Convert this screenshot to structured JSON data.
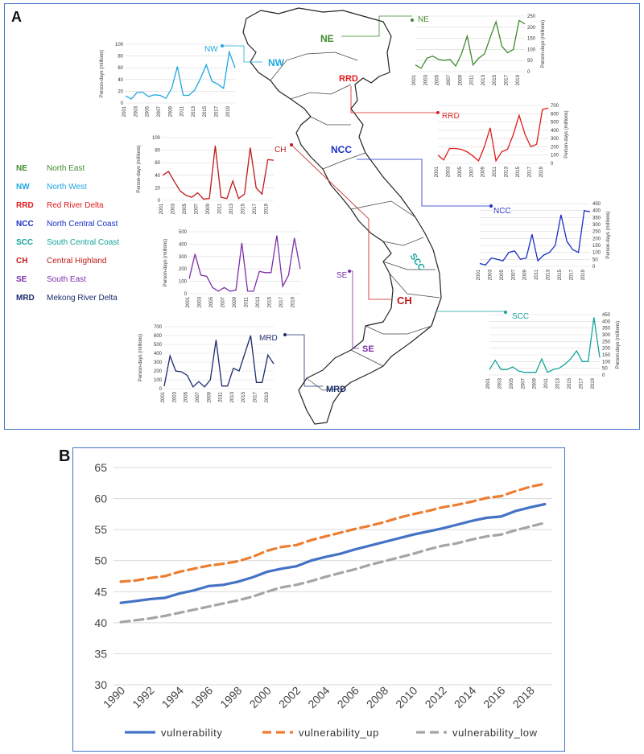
{
  "panel_a_label": "A",
  "panel_b_label": "B",
  "legend_regions": [
    {
      "code": "NE",
      "name": "North East",
      "color": "#3f8a2e"
    },
    {
      "code": "NW",
      "name": "North West",
      "color": "#1fa7e0"
    },
    {
      "code": "RRD",
      "name": "Red River Delta",
      "color": "#e01b1b"
    },
    {
      "code": "NCC",
      "name": "North Central Coast",
      "color": "#1a2fc7"
    },
    {
      "code": "SCC",
      "name": "South Central Coast",
      "color": "#14a39a"
    },
    {
      "code": "CH",
      "name": "Central Highland",
      "color": "#c01818"
    },
    {
      "code": "SE",
      "name": "South East",
      "color": "#7b2fa8"
    },
    {
      "code": "MRD",
      "name": "Mekong River Delta",
      "color": "#1b2d6b"
    }
  ],
  "map_labels": [
    "NE",
    "NW",
    "RRD",
    "NCC",
    "SCC",
    "CH",
    "SE",
    "MRD"
  ],
  "chart_data": [
    {
      "type": "line",
      "region": "NE",
      "color": "#3f8a2e",
      "label": "NE",
      "ylabel": "Person-days (millions)",
      "x": [
        2001,
        2002,
        2003,
        2004,
        2005,
        2006,
        2007,
        2008,
        2009,
        2010,
        2011,
        2012,
        2013,
        2014,
        2015,
        2016,
        2017,
        2018,
        2019,
        2020
      ],
      "y": [
        30,
        15,
        60,
        70,
        55,
        50,
        55,
        25,
        80,
        160,
        30,
        60,
        80,
        155,
        225,
        115,
        85,
        100,
        230,
        215
      ],
      "ylim": [
        0,
        250
      ],
      "yticks": [
        0,
        50,
        100,
        150,
        200,
        250
      ],
      "xticks": [
        "2001",
        "2003",
        "2005",
        "2007",
        "2009",
        "2011",
        "2013",
        "2015",
        "2017",
        "2019"
      ]
    },
    {
      "type": "line",
      "region": "NW",
      "color": "#1fa7e0",
      "label": "NW",
      "ylabel": "Person-days (millions)",
      "x": [
        2001,
        2002,
        2003,
        2004,
        2005,
        2006,
        2007,
        2008,
        2009,
        2010,
        2011,
        2012,
        2013,
        2014,
        2015,
        2016,
        2017,
        2018,
        2019,
        2020
      ],
      "y": [
        12,
        7,
        18,
        18,
        11,
        14,
        13,
        8,
        25,
        62,
        13,
        13,
        22,
        42,
        65,
        37,
        32,
        25,
        87,
        60
      ],
      "ylim": [
        0,
        100
      ],
      "yticks": [
        0,
        20,
        40,
        60,
        80,
        100
      ],
      "xticks": [
        "2001",
        "2003",
        "2005",
        "2007",
        "2009",
        "2011",
        "2013",
        "2015",
        "2017",
        "2019"
      ]
    },
    {
      "type": "line",
      "region": "RRD",
      "color": "#e01b1b",
      "label": "RRD",
      "ylabel": "Person-days (millions)",
      "x": [
        2001,
        2002,
        2003,
        2004,
        2005,
        2006,
        2007,
        2008,
        2009,
        2010,
        2011,
        2012,
        2013,
        2014,
        2015,
        2016,
        2017,
        2018,
        2019,
        2020
      ],
      "y": [
        100,
        40,
        180,
        180,
        170,
        140,
        90,
        30,
        200,
        430,
        30,
        140,
        170,
        350,
        580,
        350,
        200,
        230,
        650,
        670
      ],
      "ylim": [
        0,
        700
      ],
      "yticks": [
        0,
        100,
        200,
        300,
        400,
        500,
        600,
        700
      ],
      "xticks": [
        "2001",
        "2003",
        "2005",
        "2007",
        "2009",
        "2011",
        "2013",
        "2015",
        "2017",
        "2019"
      ]
    },
    {
      "type": "line",
      "region": "NCC",
      "color": "#1a2fc7",
      "label": "NCC",
      "ylabel": "Person-days (millions)",
      "x": [
        2001,
        2002,
        2003,
        2004,
        2005,
        2006,
        2007,
        2008,
        2009,
        2010,
        2011,
        2012,
        2013,
        2014,
        2015,
        2016,
        2017,
        2018,
        2019,
        2020
      ],
      "y": [
        20,
        10,
        60,
        50,
        40,
        100,
        110,
        50,
        60,
        230,
        40,
        80,
        100,
        150,
        370,
        180,
        120,
        100,
        400,
        390
      ],
      "ylim": [
        0,
        450
      ],
      "yticks": [
        0,
        50,
        100,
        150,
        200,
        250,
        300,
        350,
        400,
        450
      ],
      "xticks": [
        "2001",
        "2003",
        "2005",
        "2007",
        "2009",
        "2011",
        "2013",
        "2015",
        "2017",
        "2019"
      ]
    },
    {
      "type": "line",
      "region": "CH",
      "color": "#c01818",
      "label": "CH",
      "ylabel": "Person-days (millions)",
      "x": [
        2001,
        2002,
        2003,
        2004,
        2005,
        2006,
        2007,
        2008,
        2009,
        2010,
        2011,
        2012,
        2013,
        2014,
        2015,
        2016,
        2017,
        2018,
        2019,
        2020
      ],
      "y": [
        40,
        46,
        30,
        15,
        8,
        5,
        12,
        2,
        3,
        87,
        5,
        3,
        31,
        3,
        10,
        84,
        20,
        10,
        65,
        64
      ],
      "ylim": [
        0,
        100
      ],
      "yticks": [
        0,
        20,
        40,
        60,
        80,
        100
      ],
      "xticks": [
        "2001",
        "2003",
        "2005",
        "2007",
        "2009",
        "2011",
        "2013",
        "2015",
        "2017",
        "2019"
      ]
    },
    {
      "type": "line",
      "region": "SE",
      "color": "#7b2fa8",
      "label": "SE",
      "ylabel": "Person-days (millions)",
      "x": [
        2001,
        2002,
        2003,
        2004,
        2005,
        2006,
        2007,
        2008,
        2009,
        2010,
        2011,
        2012,
        2013,
        2014,
        2015,
        2016,
        2017,
        2018,
        2019,
        2020
      ],
      "y": [
        120,
        320,
        150,
        140,
        50,
        20,
        50,
        20,
        30,
        410,
        20,
        20,
        180,
        170,
        170,
        470,
        60,
        150,
        450,
        200
      ],
      "ylim": [
        0,
        500
      ],
      "yticks": [
        0,
        100,
        200,
        300,
        400,
        500
      ],
      "xticks": [
        "2001",
        "2003",
        "2005",
        "2007",
        "2009",
        "2011",
        "2013",
        "2015",
        "2017",
        "2019"
      ]
    },
    {
      "type": "line",
      "region": "MRD",
      "color": "#1b2d6b",
      "label": "MRD",
      "ylabel": "Person-days (millions)",
      "x": [
        2001,
        2002,
        2003,
        2004,
        2005,
        2006,
        2007,
        2008,
        2009,
        2010,
        2011,
        2012,
        2013,
        2014,
        2015,
        2016,
        2017,
        2018,
        2019,
        2020
      ],
      "y": [
        30,
        370,
        200,
        190,
        150,
        20,
        80,
        20,
        100,
        550,
        30,
        30,
        230,
        200,
        400,
        600,
        70,
        70,
        380,
        280
      ],
      "ylim": [
        0,
        700
      ],
      "yticks": [
        0,
        100,
        200,
        300,
        400,
        500,
        600,
        700
      ],
      "xticks": [
        "2001",
        "2003",
        "2005",
        "2007",
        "2009",
        "2011",
        "2013",
        "2015",
        "2017",
        "2019"
      ]
    },
    {
      "type": "line",
      "region": "SCC",
      "color": "#14a39a",
      "label": "SCC",
      "ylabel": "Person-days (millions)",
      "x": [
        2001,
        2002,
        2003,
        2004,
        2005,
        2006,
        2007,
        2008,
        2009,
        2010,
        2011,
        2012,
        2013,
        2014,
        2015,
        2016,
        2017,
        2018,
        2019,
        2020
      ],
      "y": [
        40,
        110,
        40,
        40,
        60,
        30,
        20,
        20,
        20,
        120,
        20,
        40,
        50,
        80,
        120,
        180,
        100,
        100,
        430,
        130
      ],
      "ylim": [
        0,
        450
      ],
      "yticks": [
        0,
        50,
        100,
        150,
        200,
        250,
        300,
        350,
        400,
        450
      ],
      "xticks": [
        "2001",
        "2003",
        "2005",
        "2007",
        "2009",
        "2011",
        "2013",
        "2015",
        "2017",
        "2019"
      ]
    },
    {
      "type": "line",
      "region": "panel-B",
      "x": [
        1990,
        1991,
        1992,
        1993,
        1994,
        1995,
        1996,
        1997,
        1998,
        1999,
        2000,
        2001,
        2002,
        2003,
        2004,
        2005,
        2006,
        2007,
        2008,
        2009,
        2010,
        2011,
        2012,
        2013,
        2014,
        2015,
        2016,
        2017,
        2018,
        2019
      ],
      "series": [
        {
          "name": "vulnerability",
          "color": "#4472c4",
          "dash": "solid",
          "values": [
            43.2,
            43.5,
            43.8,
            44.0,
            44.7,
            45.2,
            45.9,
            46.1,
            46.6,
            47.3,
            48.2,
            48.7,
            49.1,
            50.0,
            50.6,
            51.1,
            51.8,
            52.4,
            53.0,
            53.6,
            54.2,
            54.7,
            55.2,
            55.8,
            56.4,
            56.9,
            57.1,
            58.0,
            58.6,
            59.1
          ]
        },
        {
          "name": "vulnerability_up",
          "color": "#ed7d31",
          "dash": "dash",
          "values": [
            46.6,
            46.8,
            47.2,
            47.5,
            48.2,
            48.7,
            49.2,
            49.5,
            49.9,
            50.6,
            51.6,
            52.2,
            52.5,
            53.3,
            53.9,
            54.5,
            55.1,
            55.6,
            56.2,
            56.9,
            57.5,
            58.0,
            58.6,
            59.0,
            59.5,
            60.1,
            60.4,
            61.2,
            61.9,
            62.4
          ]
        },
        {
          "name": "vulnerability_low",
          "color": "#a5a5a5",
          "dash": "dash",
          "values": [
            40.1,
            40.4,
            40.7,
            41.1,
            41.6,
            42.1,
            42.6,
            43.1,
            43.6,
            44.2,
            45.0,
            45.7,
            46.1,
            46.7,
            47.4,
            48.0,
            48.6,
            49.3,
            49.9,
            50.5,
            51.1,
            51.8,
            52.4,
            52.8,
            53.4,
            53.9,
            54.2,
            54.9,
            55.5,
            56.1
          ]
        }
      ],
      "ylim": [
        30,
        65
      ],
      "yticks": [
        "30",
        "35",
        "40",
        "45",
        "50",
        "55",
        "60",
        "65"
      ],
      "xticks": [
        "1990",
        "1992",
        "1994",
        "1996",
        "1998",
        "2000",
        "2002",
        "2004",
        "2006",
        "2008",
        "2010",
        "2012",
        "2014",
        "2016",
        "2018"
      ],
      "grid": true,
      "legend_position": "bottom"
    }
  ]
}
